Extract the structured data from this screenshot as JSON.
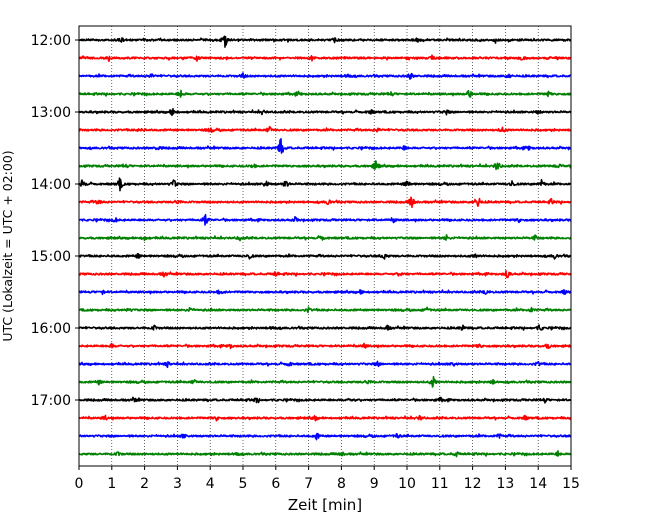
{
  "chart_data": {
    "type": "line",
    "title": "",
    "xlabel": "Zeit  [min]",
    "ylabel": "UTC (Lokalzeit = UTC + 02:00)",
    "xlim": [
      0,
      15
    ],
    "x_ticks": [
      "0",
      "1",
      "2",
      "3",
      "4",
      "5",
      "6",
      "7",
      "8",
      "9",
      "10",
      "11",
      "12",
      "13",
      "14",
      "15"
    ],
    "y_hour_labels": [
      "12:00",
      "13:00",
      "14:00",
      "15:00",
      "16:00",
      "17:00"
    ],
    "trace_interval_min": 15,
    "start_time_utc": "12:00",
    "trace_colors": [
      "#000000",
      "#ff0000",
      "#0000ff",
      "#008000"
    ],
    "grid": "vertical dotted",
    "traces": [
      {
        "start": "12:00",
        "color": "#000000",
        "events": [
          {
            "t": 4.45,
            "amp": 1.0
          },
          {
            "t": 1.3,
            "amp": 0.3
          },
          {
            "t": 7.8,
            "amp": 0.3
          },
          {
            "t": 10.3,
            "amp": 0.3
          },
          {
            "t": 12.7,
            "amp": 0.3
          }
        ]
      },
      {
        "start": "12:15",
        "color": "#ff0000",
        "events": [
          {
            "t": 0.9,
            "amp": 0.3
          },
          {
            "t": 3.6,
            "amp": 0.3
          },
          {
            "t": 7.1,
            "amp": 0.3
          },
          {
            "t": 10.8,
            "amp": 0.3
          },
          {
            "t": 13.5,
            "amp": 0.3
          }
        ]
      },
      {
        "start": "12:30",
        "color": "#0000ff",
        "events": [
          {
            "t": 2.2,
            "amp": 0.3
          },
          {
            "t": 5.0,
            "amp": 0.3
          },
          {
            "t": 8.2,
            "amp": 0.35
          },
          {
            "t": 10.1,
            "amp": 0.4
          },
          {
            "t": 13.1,
            "amp": 0.3
          }
        ]
      },
      {
        "start": "12:45",
        "color": "#008000",
        "events": [
          {
            "t": 3.1,
            "amp": 0.5
          },
          {
            "t": 6.7,
            "amp": 0.3
          },
          {
            "t": 9.5,
            "amp": 0.3
          },
          {
            "t": 11.9,
            "amp": 0.6
          },
          {
            "t": 14.3,
            "amp": 0.3
          }
        ]
      },
      {
        "start": "13:00",
        "color": "#000000",
        "events": [
          {
            "t": 2.85,
            "amp": 0.65
          },
          {
            "t": 5.6,
            "amp": 0.3
          },
          {
            "t": 8.9,
            "amp": 0.3
          },
          {
            "t": 11.2,
            "amp": 0.3
          },
          {
            "t": 14.0,
            "amp": 0.3
          }
        ]
      },
      {
        "start": "13:15",
        "color": "#ff0000",
        "events": [
          {
            "t": 1.9,
            "amp": 0.3
          },
          {
            "t": 4.0,
            "amp": 0.3
          },
          {
            "t": 5.8,
            "amp": 0.45
          },
          {
            "t": 9.1,
            "amp": 0.3
          },
          {
            "t": 12.9,
            "amp": 0.35
          }
        ]
      },
      {
        "start": "13:30",
        "color": "#0000ff",
        "events": [
          {
            "t": 6.15,
            "amp": 1.4
          },
          {
            "t": 2.4,
            "amp": 0.3
          },
          {
            "t": 9.9,
            "amp": 0.3
          },
          {
            "t": 13.7,
            "amp": 0.3
          }
        ]
      },
      {
        "start": "13:45",
        "color": "#008000",
        "events": [
          {
            "t": 9.05,
            "amp": 0.8
          },
          {
            "t": 12.75,
            "amp": 0.8
          },
          {
            "t": 1.4,
            "amp": 0.3
          },
          {
            "t": 5.3,
            "amp": 0.3
          },
          {
            "t": 14.6,
            "amp": 0.3
          }
        ]
      },
      {
        "start": "14:00",
        "color": "#000000",
        "events": [
          {
            "t": 0.1,
            "amp": 0.8
          },
          {
            "t": 1.25,
            "amp": 0.8
          },
          {
            "t": 2.9,
            "amp": 0.6
          },
          {
            "t": 5.7,
            "amp": 0.5
          },
          {
            "t": 6.3,
            "amp": 0.5
          },
          {
            "t": 10.0,
            "amp": 0.5
          },
          {
            "t": 13.2,
            "amp": 0.45
          },
          {
            "t": 14.1,
            "amp": 0.45
          }
        ]
      },
      {
        "start": "14:15",
        "color": "#ff0000",
        "events": [
          {
            "t": 10.15,
            "amp": 0.9
          },
          {
            "t": 12.15,
            "amp": 1.1
          },
          {
            "t": 0.6,
            "amp": 0.35
          },
          {
            "t": 3.0,
            "amp": 0.35
          },
          {
            "t": 7.6,
            "amp": 0.35
          },
          {
            "t": 14.4,
            "amp": 0.35
          }
        ]
      },
      {
        "start": "14:30",
        "color": "#0000ff",
        "events": [
          {
            "t": 3.85,
            "amp": 0.8
          },
          {
            "t": 1.1,
            "amp": 0.3
          },
          {
            "t": 6.6,
            "amp": 0.3
          },
          {
            "t": 9.6,
            "amp": 0.3
          },
          {
            "t": 13.4,
            "amp": 0.3
          }
        ]
      },
      {
        "start": "14:45",
        "color": "#008000",
        "events": [
          {
            "t": 2.0,
            "amp": 0.3
          },
          {
            "t": 4.9,
            "amp": 0.3
          },
          {
            "t": 7.4,
            "amp": 0.3
          },
          {
            "t": 11.2,
            "amp": 0.35
          },
          {
            "t": 13.9,
            "amp": 0.3
          }
        ]
      },
      {
        "start": "15:00",
        "color": "#000000",
        "events": [
          {
            "t": 1.8,
            "amp": 0.3
          },
          {
            "t": 5.2,
            "amp": 0.3
          },
          {
            "t": 9.3,
            "amp": 0.5
          },
          {
            "t": 12.1,
            "amp": 0.3
          },
          {
            "t": 14.5,
            "amp": 0.3
          }
        ]
      },
      {
        "start": "15:15",
        "color": "#ff0000",
        "events": [
          {
            "t": 13.05,
            "amp": 0.6
          },
          {
            "t": 2.6,
            "amp": 0.3
          },
          {
            "t": 6.0,
            "amp": 0.3
          },
          {
            "t": 9.8,
            "amp": 0.3
          }
        ]
      },
      {
        "start": "15:30",
        "color": "#0000ff",
        "events": [
          {
            "t": 0.7,
            "amp": 0.3
          },
          {
            "t": 4.3,
            "amp": 0.3
          },
          {
            "t": 8.6,
            "amp": 0.3
          },
          {
            "t": 12.4,
            "amp": 0.3
          },
          {
            "t": 14.8,
            "amp": 0.3
          }
        ]
      },
      {
        "start": "15:45",
        "color": "#008000",
        "events": [
          {
            "t": 1.5,
            "amp": 0.3
          },
          {
            "t": 3.4,
            "amp": 0.3
          },
          {
            "t": 7.0,
            "amp": 0.3
          },
          {
            "t": 10.6,
            "amp": 0.3
          },
          {
            "t": 13.8,
            "amp": 0.3
          }
        ]
      },
      {
        "start": "16:00",
        "color": "#000000",
        "events": [
          {
            "t": 14.05,
            "amp": 0.45
          },
          {
            "t": 2.3,
            "amp": 0.3
          },
          {
            "t": 5.9,
            "amp": 0.3
          },
          {
            "t": 9.4,
            "amp": 0.3
          },
          {
            "t": 11.7,
            "amp": 0.3
          }
        ]
      },
      {
        "start": "16:15",
        "color": "#ff0000",
        "events": [
          {
            "t": 1.0,
            "amp": 0.3
          },
          {
            "t": 4.6,
            "amp": 0.3
          },
          {
            "t": 8.7,
            "amp": 0.3
          },
          {
            "t": 12.2,
            "amp": 0.3
          },
          {
            "t": 14.3,
            "amp": 0.3
          }
        ]
      },
      {
        "start": "16:30",
        "color": "#0000ff",
        "events": [
          {
            "t": 2.7,
            "amp": 0.3
          },
          {
            "t": 6.4,
            "amp": 0.3
          },
          {
            "t": 9.1,
            "amp": 0.3
          },
          {
            "t": 11.4,
            "amp": 0.3
          },
          {
            "t": 14.0,
            "amp": 0.3
          }
        ]
      },
      {
        "start": "16:45",
        "color": "#008000",
        "events": [
          {
            "t": 10.8,
            "amp": 0.8
          },
          {
            "t": 0.6,
            "amp": 0.3
          },
          {
            "t": 3.5,
            "amp": 0.3
          },
          {
            "t": 8.8,
            "amp": 0.35
          },
          {
            "t": 12.6,
            "amp": 0.3
          }
        ]
      },
      {
        "start": "17:00",
        "color": "#000000",
        "events": [
          {
            "t": 1.7,
            "amp": 0.3
          },
          {
            "t": 5.4,
            "amp": 0.3
          },
          {
            "t": 8.3,
            "amp": 0.3
          },
          {
            "t": 11.0,
            "amp": 0.3
          },
          {
            "t": 14.2,
            "amp": 0.3
          }
        ]
      },
      {
        "start": "17:15",
        "color": "#ff0000",
        "events": [
          {
            "t": 0.8,
            "amp": 0.3
          },
          {
            "t": 4.2,
            "amp": 0.3
          },
          {
            "t": 7.2,
            "amp": 0.3
          },
          {
            "t": 10.4,
            "amp": 0.3
          },
          {
            "t": 13.6,
            "amp": 0.3
          }
        ]
      },
      {
        "start": "17:30",
        "color": "#0000ff",
        "events": [
          {
            "t": 3.2,
            "amp": 0.3
          },
          {
            "t": 7.25,
            "amp": 0.45
          },
          {
            "t": 9.7,
            "amp": 0.3
          },
          {
            "t": 12.8,
            "amp": 0.3
          }
        ]
      },
      {
        "start": "17:45",
        "color": "#008000",
        "events": [
          {
            "t": 1.2,
            "amp": 0.3
          },
          {
            "t": 4.8,
            "amp": 0.3
          },
          {
            "t": 8.0,
            "amp": 0.3
          },
          {
            "t": 11.5,
            "amp": 0.3
          },
          {
            "t": 14.6,
            "amp": 0.3
          }
        ]
      }
    ]
  }
}
